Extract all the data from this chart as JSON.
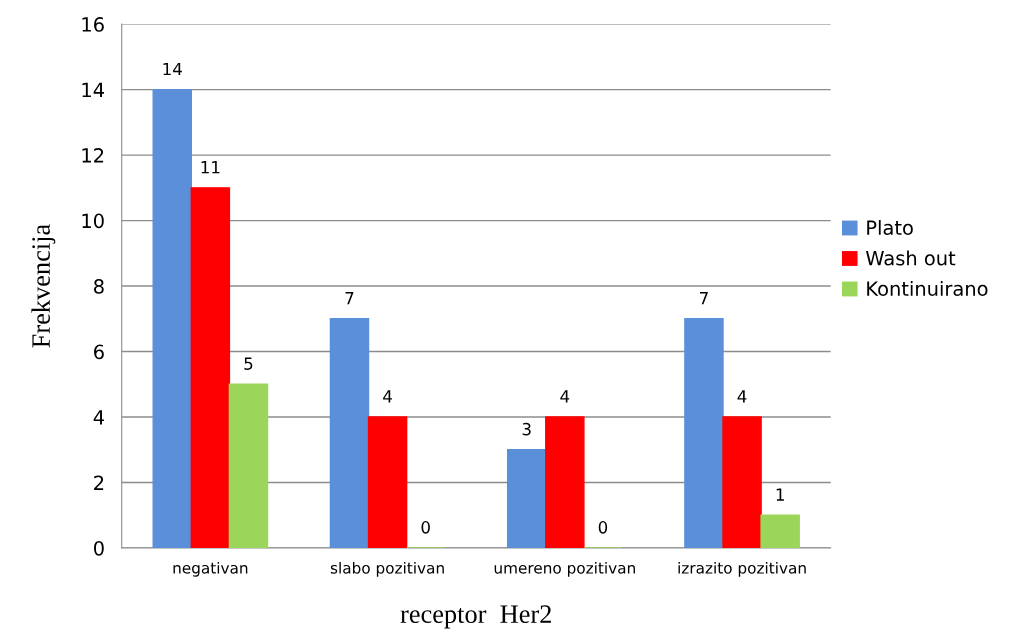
{
  "chart_data": {
    "type": "bar",
    "xlabel": "receptor  Her2",
    "ylabel": "Frekvencija",
    "categories": [
      "negativan",
      "slabo pozitivan",
      "umereno pozitivan",
      "izrazito pozitivan"
    ],
    "series": [
      {
        "name": "Plato",
        "color": "#5b8fd9",
        "values": [
          14,
          7,
          3,
          7
        ]
      },
      {
        "name": "Wash out",
        "color": "#ff0000",
        "values": [
          11,
          4,
          4,
          4
        ]
      },
      {
        "name": "Kontinuirano",
        "color": "#9bd65a",
        "values": [
          5,
          0,
          0,
          1
        ]
      }
    ],
    "ylim": [
      0,
      16
    ],
    "yticks": [
      0,
      2,
      4,
      6,
      8,
      10,
      12,
      14,
      16
    ],
    "grid": "y",
    "legend": "right",
    "data_labels": true
  }
}
